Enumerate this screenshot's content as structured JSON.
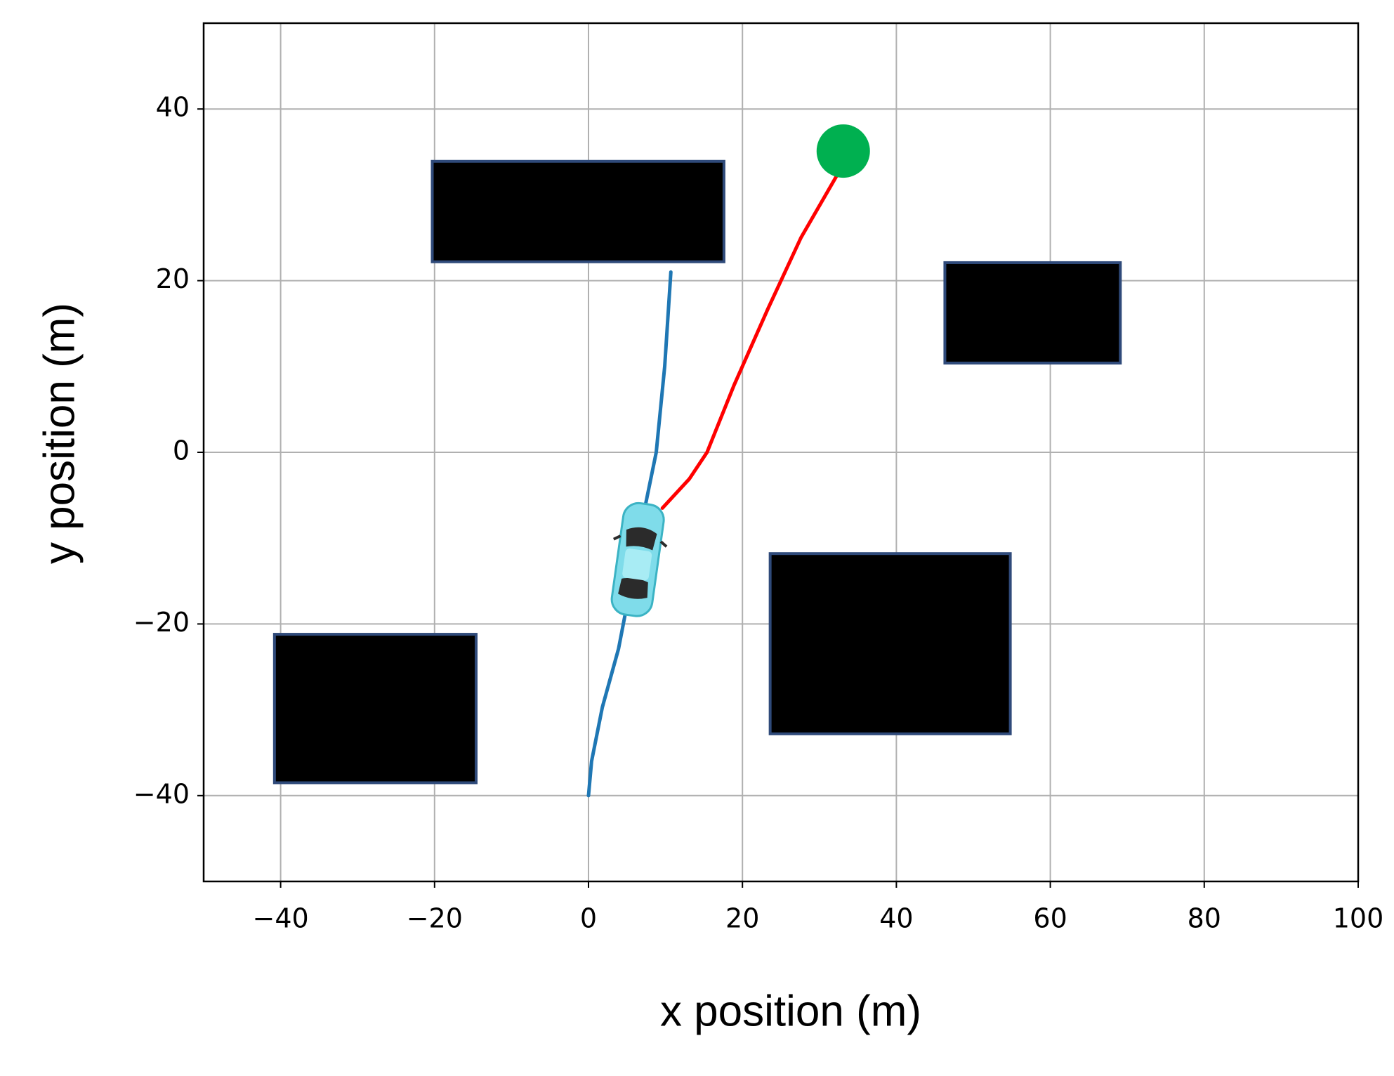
{
  "chart_data": {
    "type": "line",
    "xlabel": "x position (m)",
    "ylabel": "y position (m)",
    "xlim": [
      -50,
      100
    ],
    "ylim": [
      -50,
      50
    ],
    "xticks": [
      {
        "value": -40,
        "label": "−40"
      },
      {
        "value": -20,
        "label": "−20"
      },
      0,
      20,
      40,
      60,
      80,
      100
    ],
    "yticks": [
      {
        "value": -40,
        "label": "−40"
      },
      {
        "value": -20,
        "label": "−20"
      },
      0,
      20,
      40
    ],
    "grid": true,
    "series": [
      {
        "color": "#1f77b4",
        "x": [
          0,
          0.4,
          1.8,
          3.9,
          5.6,
          7.2,
          8.8,
          9.9,
          10.7
        ],
        "values": [
          -40,
          -36,
          -29.7,
          -22.9,
          -15,
          -7,
          0,
          10,
          21
        ]
      },
      {
        "color": "#ff0000",
        "x": [
          9.6,
          13.1,
          15.4,
          18.9,
          23.3,
          27.6,
          32.3
        ],
        "values": [
          -6.5,
          -3.1,
          0,
          7.8,
          16.7,
          25,
          32.3
        ]
      }
    ],
    "obstacles": [
      {
        "x": [
          -20.3,
          17.6
        ],
        "y": [
          22.2,
          33.9
        ]
      },
      {
        "x": [
          46.3,
          69.1
        ],
        "y": [
          10.4,
          22.1
        ]
      },
      {
        "x": [
          23.6,
          54.8
        ],
        "y": [
          -32.8,
          -11.8
        ]
      },
      {
        "x": [
          -40.8,
          -14.6
        ],
        "y": [
          -38.5,
          -21.2
        ]
      }
    ],
    "obstacle_color": "#000000",
    "goal": {
      "x": 33.1,
      "y": 35.1,
      "color": "#00b050"
    },
    "vehicle": {
      "x": 6.4,
      "y": -12.5,
      "color": "#7fdcea"
    }
  }
}
